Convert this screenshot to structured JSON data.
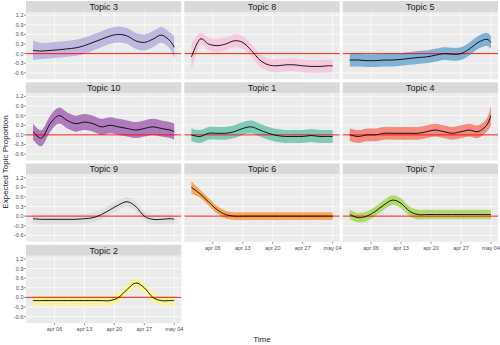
{
  "chart_data": {
    "type": "line",
    "x_label": "Time",
    "y_label": "Expected Topic Proportion",
    "grid": true,
    "xlim": [
      -0.65,
      35.65
    ],
    "xticks": [
      {
        "value": 6,
        "label": "apr 06"
      },
      {
        "value": 13,
        "label": "apr 13"
      },
      {
        "value": 20,
        "label": "apr 20"
      },
      {
        "value": 27,
        "label": "apr 27"
      },
      {
        "value": 34,
        "label": "may 04"
      }
    ],
    "ylim": [
      -0.8,
      1.3
    ],
    "yticks": [
      -0.6,
      -0.3,
      {
        "value": 0,
        "label": "0.0"
      },
      0.3,
      0.6,
      0.9,
      1.2
    ],
    "reference_line": {
      "value": 0,
      "color": "#ff0000"
    },
    "x": [
      1,
      3,
      5,
      7,
      9,
      11,
      13,
      15,
      17,
      19,
      21,
      23,
      25,
      27,
      29,
      31,
      33,
      34
    ],
    "series": [
      {
        "name": "Topic 3",
        "color": "#b9aedc",
        "values": [
          0.1,
          0.08,
          0.1,
          0.12,
          0.15,
          0.18,
          0.25,
          0.35,
          0.45,
          0.55,
          0.6,
          0.55,
          0.4,
          0.35,
          0.45,
          0.58,
          0.4,
          0.2
        ],
        "lower": [
          -0.2,
          -0.17,
          -0.15,
          -0.13,
          -0.1,
          -0.07,
          0,
          0.1,
          0.2,
          0.3,
          0.35,
          0.3,
          0.15,
          0.1,
          0.2,
          0.33,
          0.15,
          -0.15
        ],
        "upper": [
          0.4,
          0.33,
          0.35,
          0.37,
          0.4,
          0.43,
          0.5,
          0.6,
          0.7,
          0.8,
          0.85,
          0.8,
          0.65,
          0.6,
          0.7,
          0.83,
          0.65,
          0.55
        ]
      },
      {
        "name": "Topic 8",
        "color": "#f7c3da",
        "values": [
          -0.1,
          0.45,
          0.3,
          0.25,
          0.3,
          0.4,
          0.35,
          0.1,
          -0.2,
          -0.35,
          -0.38,
          -0.35,
          -0.35,
          -0.38,
          -0.4,
          -0.4,
          -0.38,
          -0.38
        ],
        "lower": [
          -0.5,
          0.25,
          0.1,
          0.05,
          0.1,
          0.2,
          0.15,
          -0.1,
          -0.4,
          -0.55,
          -0.58,
          -0.55,
          -0.55,
          -0.58,
          -0.6,
          -0.6,
          -0.58,
          -0.58
        ],
        "upper": [
          0.3,
          0.65,
          0.5,
          0.45,
          0.5,
          0.6,
          0.55,
          0.3,
          0,
          -0.15,
          -0.18,
          -0.15,
          -0.15,
          -0.18,
          -0.2,
          -0.2,
          -0.18,
          -0.18
        ]
      },
      {
        "name": "Topic 5",
        "color": "#6ea6d4",
        "values": [
          -0.2,
          -0.2,
          -0.22,
          -0.22,
          -0.2,
          -0.2,
          -0.18,
          -0.15,
          -0.12,
          -0.1,
          -0.05,
          0,
          -0.02,
          0,
          0.15,
          0.35,
          0.45,
          0.35
        ],
        "lower": [
          -0.4,
          -0.4,
          -0.42,
          -0.42,
          -0.4,
          -0.4,
          -0.38,
          -0.35,
          -0.32,
          -0.3,
          -0.25,
          -0.2,
          -0.22,
          -0.2,
          -0.05,
          0.15,
          0.25,
          0.15
        ],
        "upper": [
          0,
          0,
          -0.02,
          -0.02,
          0,
          0,
          0.02,
          0.05,
          0.08,
          0.1,
          0.15,
          0.2,
          0.18,
          0.2,
          0.35,
          0.55,
          0.65,
          0.55
        ]
      },
      {
        "name": "Topic 10",
        "color": "#a466b4",
        "values": [
          0.1,
          -0.1,
          0.35,
          0.6,
          0.45,
          0.35,
          0.4,
          0.35,
          0.25,
          0.3,
          0.25,
          0.2,
          0.15,
          0.2,
          0.25,
          0.2,
          0.15,
          0.1
        ],
        "lower": [
          -0.15,
          -0.35,
          0.1,
          0.35,
          0.2,
          0.1,
          0.15,
          0.1,
          0,
          0.05,
          0,
          -0.05,
          -0.1,
          -0.05,
          0,
          -0.05,
          -0.1,
          -0.15
        ],
        "upper": [
          0.35,
          0.15,
          0.6,
          0.85,
          0.7,
          0.6,
          0.65,
          0.6,
          0.5,
          0.55,
          0.5,
          0.45,
          0.4,
          0.45,
          0.5,
          0.45,
          0.4,
          0.35
        ]
      },
      {
        "name": "Topic 1",
        "color": "#6cc4ae",
        "values": [
          0,
          -0.05,
          0.05,
          0.05,
          0.05,
          0.1,
          0.2,
          0.25,
          0.15,
          0.05,
          -0.02,
          -0.05,
          -0.05,
          -0.05,
          -0.02,
          -0.05,
          -0.05,
          -0.05
        ],
        "lower": [
          -0.2,
          -0.25,
          -0.15,
          -0.15,
          -0.15,
          -0.1,
          0,
          0.05,
          -0.05,
          -0.15,
          -0.22,
          -0.25,
          -0.25,
          -0.25,
          -0.22,
          -0.25,
          -0.25,
          -0.25
        ],
        "upper": [
          0.2,
          0.15,
          0.25,
          0.25,
          0.25,
          0.3,
          0.4,
          0.45,
          0.35,
          0.25,
          0.18,
          0.15,
          0.15,
          0.15,
          0.18,
          0.15,
          0.15,
          0.15
        ]
      },
      {
        "name": "Topic 4",
        "color": "#f47a6c",
        "values": [
          0,
          -0.05,
          0,
          0,
          0.05,
          0.05,
          0.05,
          0.05,
          0.05,
          0.1,
          0.15,
          0.1,
          0.05,
          0.1,
          0.15,
          0.1,
          0.3,
          0.6
        ],
        "lower": [
          -0.2,
          -0.25,
          -0.2,
          -0.2,
          -0.15,
          -0.15,
          -0.15,
          -0.15,
          -0.15,
          -0.1,
          -0.05,
          -0.1,
          -0.15,
          -0.1,
          -0.05,
          -0.1,
          0.1,
          0.3
        ],
        "upper": [
          0.2,
          0.15,
          0.2,
          0.2,
          0.25,
          0.25,
          0.25,
          0.25,
          0.25,
          0.3,
          0.35,
          0.3,
          0.25,
          0.3,
          0.35,
          0.3,
          0.5,
          0.9
        ]
      },
      {
        "name": "Topic 9",
        "color": "#dcdcdc",
        "values": [
          -0.08,
          -0.1,
          -0.1,
          -0.1,
          -0.1,
          -0.1,
          -0.08,
          -0.05,
          0.05,
          0.2,
          0.35,
          0.45,
          0.3,
          0,
          -0.1,
          -0.1,
          -0.08,
          -0.1
        ],
        "lower": [
          -0.23,
          -0.25,
          -0.25,
          -0.25,
          -0.25,
          -0.25,
          -0.23,
          -0.2,
          -0.1,
          0.05,
          0.2,
          0.3,
          0.15,
          -0.15,
          -0.25,
          -0.25,
          -0.23,
          -0.25
        ],
        "upper": [
          0.07,
          0.05,
          0.05,
          0.05,
          0.05,
          0.05,
          0.07,
          0.1,
          0.2,
          0.35,
          0.5,
          0.6,
          0.45,
          0.15,
          0.05,
          0.05,
          0.07,
          0.05
        ]
      },
      {
        "name": "Topic 6",
        "color": "#f59b3d",
        "values": [
          0.9,
          0.7,
          0.45,
          0.2,
          0.05,
          0,
          0,
          0,
          0,
          0,
          0,
          0,
          0,
          0,
          0,
          0,
          0,
          0
        ],
        "lower": [
          0.7,
          0.58,
          0.33,
          0.08,
          -0.07,
          -0.12,
          -0.12,
          -0.12,
          -0.12,
          -0.12,
          -0.12,
          -0.12,
          -0.12,
          -0.12,
          -0.12,
          -0.12,
          -0.12,
          -0.12
        ],
        "upper": [
          1.1,
          0.82,
          0.57,
          0.32,
          0.17,
          0.12,
          0.12,
          0.12,
          0.12,
          0.12,
          0.12,
          0.12,
          0.12,
          0.12,
          0.12,
          0.12,
          0.12,
          0.12
        ]
      },
      {
        "name": "Topic 7",
        "color": "#a7d756",
        "values": [
          0.05,
          -0.05,
          0,
          0.15,
          0.35,
          0.5,
          0.4,
          0.15,
          0.05,
          0.05,
          0.05,
          0.05,
          0.05,
          0.05,
          0.05,
          0.05,
          0.05,
          0.05
        ],
        "lower": [
          -0.1,
          -0.2,
          -0.15,
          0,
          0.2,
          0.35,
          0.25,
          0,
          -0.1,
          -0.1,
          -0.1,
          -0.1,
          -0.1,
          -0.1,
          -0.1,
          -0.1,
          -0.1,
          -0.1
        ],
        "upper": [
          0.2,
          0.1,
          0.15,
          0.3,
          0.5,
          0.65,
          0.55,
          0.3,
          0.2,
          0.2,
          0.2,
          0.2,
          0.2,
          0.2,
          0.2,
          0.2,
          0.2,
          0.2
        ]
      },
      {
        "name": "Topic 2",
        "color": "#fbf68c",
        "values": [
          -0.1,
          -0.1,
          -0.1,
          -0.1,
          -0.1,
          -0.1,
          -0.1,
          -0.1,
          -0.1,
          -0.1,
          0,
          0.25,
          0.45,
          0.3,
          0,
          -0.1,
          -0.1,
          -0.1
        ],
        "lower": [
          -0.25,
          -0.25,
          -0.25,
          -0.25,
          -0.25,
          -0.25,
          -0.25,
          -0.25,
          -0.25,
          -0.25,
          -0.15,
          0.1,
          0.3,
          0.15,
          -0.15,
          -0.25,
          -0.25,
          -0.25
        ],
        "upper": [
          0.05,
          0.05,
          0.05,
          0.05,
          0.05,
          0.05,
          0.05,
          0.05,
          0.05,
          0.05,
          0.15,
          0.4,
          0.6,
          0.45,
          0.15,
          0.05,
          0.05,
          0.05
        ]
      }
    ]
  }
}
